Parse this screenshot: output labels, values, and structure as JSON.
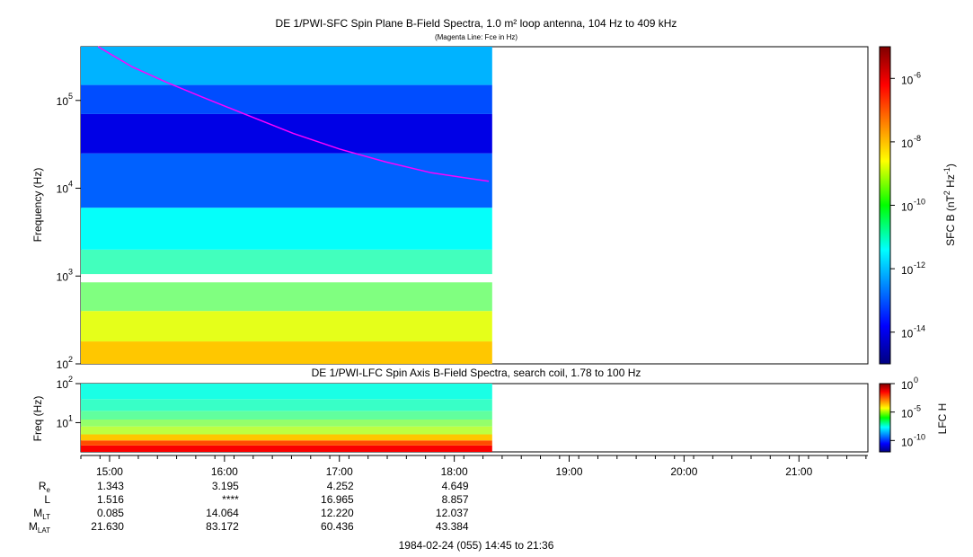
{
  "chart_data": [
    {
      "type": "heatmap",
      "title": "DE 1/PWI-SFC  Spin Plane B-Field Spectra, 1.0 m² loop antenna, 104 Hz to 409 kHz",
      "subtitle": "(Magenta Line: Fce in Hz)",
      "ylabel": "Frequency (Hz)",
      "yscale": "log",
      "ylim": [
        100,
        409000
      ],
      "y_ticks": [
        {
          "value": 100,
          "label": "10",
          "exp": "2"
        },
        {
          "value": 1000,
          "label": "10",
          "exp": "3"
        },
        {
          "value": 10000,
          "label": "10",
          "exp": "4"
        },
        {
          "value": 100000,
          "label": "10",
          "exp": "5"
        }
      ],
      "data_coverage_hours": [
        14.75,
        18.33
      ],
      "data_gap_hz": [
        850,
        1050
      ],
      "colorbar": {
        "label_parts": [
          "SFC B (nT",
          "2",
          " Hz",
          "-1",
          ")"
        ],
        "scale": "log",
        "range": [
          1e-15,
          1e-05
        ],
        "ticks": [
          {
            "value": 1e-06,
            "label": "10",
            "exp": "-6"
          },
          {
            "value": 1e-08,
            "label": "10",
            "exp": "-8"
          },
          {
            "value": 1e-10,
            "label": "10",
            "exp": "-10"
          },
          {
            "value": 1e-12,
            "label": "10",
            "exp": "-12"
          },
          {
            "value": 1e-14,
            "label": "10",
            "exp": "-14"
          }
        ]
      },
      "fce_line": {
        "color": "#ff00ff",
        "x_hours": [
          14.9,
          15.2,
          15.5,
          15.8,
          16.2,
          16.6,
          17.0,
          17.4,
          17.8,
          18.3
        ],
        "y_hz": [
          409000,
          240000,
          160000,
          110000,
          68000,
          42000,
          28000,
          20000,
          15000,
          12000
        ]
      },
      "bands": [
        {
          "y0": 100,
          "y1": 180,
          "level": 0.68
        },
        {
          "y0": 180,
          "y1": 400,
          "level": 0.6
        },
        {
          "y0": 400,
          "y1": 850,
          "level": 0.5
        },
        {
          "y0": 1050,
          "y1": 2000,
          "level": 0.44
        },
        {
          "y0": 2000,
          "y1": 6000,
          "level": 0.38
        },
        {
          "y0": 6000,
          "y1": 25000,
          "level": 0.22
        },
        {
          "y0": 25000,
          "y1": 70000,
          "level": 0.1
        },
        {
          "y0": 70000,
          "y1": 150000,
          "level": 0.2
        },
        {
          "y0": 150000,
          "y1": 409000,
          "level": 0.3
        }
      ]
    },
    {
      "type": "heatmap",
      "title": "DE 1/PWI-LFC  Spin Axis B-Field Spectra, search coil, 1.78 to 100 Hz",
      "ylabel": "Freq (Hz)",
      "yscale": "log",
      "ylim": [
        1.78,
        100
      ],
      "y_ticks": [
        {
          "value": 10,
          "label": "10",
          "exp": "1"
        },
        {
          "value": 100,
          "label": "10",
          "exp": "2"
        }
      ],
      "data_coverage_hours": [
        14.75,
        18.33
      ],
      "colorbar": {
        "label": "LFC H",
        "scale": "log",
        "range": [
          1e-12,
          1
        ],
        "ticks": [
          {
            "value": 1,
            "label": "10",
            "exp": "0"
          },
          {
            "value": 1e-05,
            "label": "10",
            "exp": "-5"
          },
          {
            "value": 1e-10,
            "label": "10",
            "exp": "-10"
          }
        ]
      },
      "bands": [
        {
          "y0": 1.78,
          "y1": 2.6,
          "level": 0.88
        },
        {
          "y0": 2.6,
          "y1": 3.5,
          "level": 0.8
        },
        {
          "y0": 3.5,
          "y1": 5,
          "level": 0.68
        },
        {
          "y0": 5,
          "y1": 8,
          "level": 0.56
        },
        {
          "y0": 8,
          "y1": 12,
          "level": 0.52
        },
        {
          "y0": 12,
          "y1": 20,
          "level": 0.47
        },
        {
          "y0": 20,
          "y1": 40,
          "level": 0.43
        },
        {
          "y0": 40,
          "y1": 100,
          "level": 0.4
        }
      ]
    }
  ],
  "time_axis": {
    "range_hours": [
      14.75,
      21.6
    ],
    "ticks": [
      {
        "hour": 15,
        "label": "15:00"
      },
      {
        "hour": 16,
        "label": "16:00"
      },
      {
        "hour": 17,
        "label": "17:00"
      },
      {
        "hour": 18,
        "label": "18:00"
      },
      {
        "hour": 19,
        "label": "19:00"
      },
      {
        "hour": 20,
        "label": "20:00"
      },
      {
        "hour": 21,
        "label": "21:00"
      }
    ]
  },
  "ephemeris": {
    "rows": [
      {
        "name": "R",
        "sub": "e",
        "values": [
          "1.343",
          "3.195",
          "4.252",
          "4.649"
        ]
      },
      {
        "name": "L",
        "sub": "",
        "values": [
          "1.516",
          "****",
          "16.965",
          "8.857"
        ]
      },
      {
        "name": "M",
        "sub": "LT",
        "values": [
          "0.085",
          "14.064",
          "12.220",
          "12.037"
        ]
      },
      {
        "name": "M",
        "sub": "LAT",
        "values": [
          "21.630",
          "83.172",
          "60.436",
          "43.384"
        ]
      }
    ]
  },
  "footer": "1984-02-24 (055) 14:45 to 21:36"
}
